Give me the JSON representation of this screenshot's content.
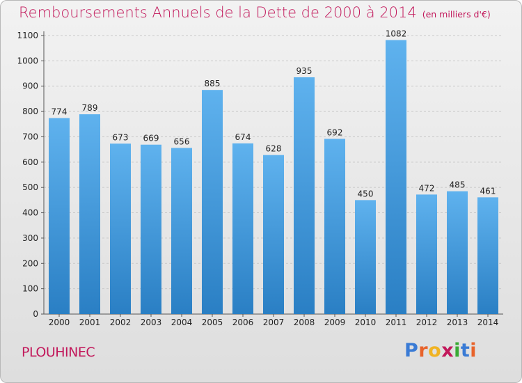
{
  "chart_data": {
    "type": "bar",
    "title": "Remboursements Annuels de la Dette de 2000 à 2014",
    "units": "(en milliers d'€)",
    "categories": [
      "2000",
      "2001",
      "2002",
      "2003",
      "2004",
      "2005",
      "2006",
      "2007",
      "2008",
      "2009",
      "2010",
      "2011",
      "2012",
      "2013",
      "2014"
    ],
    "values": [
      774,
      789,
      673,
      669,
      656,
      885,
      674,
      628,
      935,
      692,
      450,
      1082,
      472,
      485,
      461
    ],
    "ylim": [
      0,
      1100
    ],
    "yticks": [
      0,
      100,
      200,
      300,
      400,
      500,
      600,
      700,
      800,
      900,
      1000,
      1100
    ],
    "grid": true,
    "bar_color": "#4a9fe0"
  },
  "footer": {
    "city": "PLOUHINEC",
    "logo_letters": [
      "P",
      "r",
      "o",
      "x",
      "i",
      "t",
      "i"
    ],
    "logo_colors": [
      "#3a7bd5",
      "#e8632b",
      "#f0b323",
      "#c2185b",
      "#3aaa35",
      "#3a7bd5",
      "#e8632b"
    ]
  }
}
